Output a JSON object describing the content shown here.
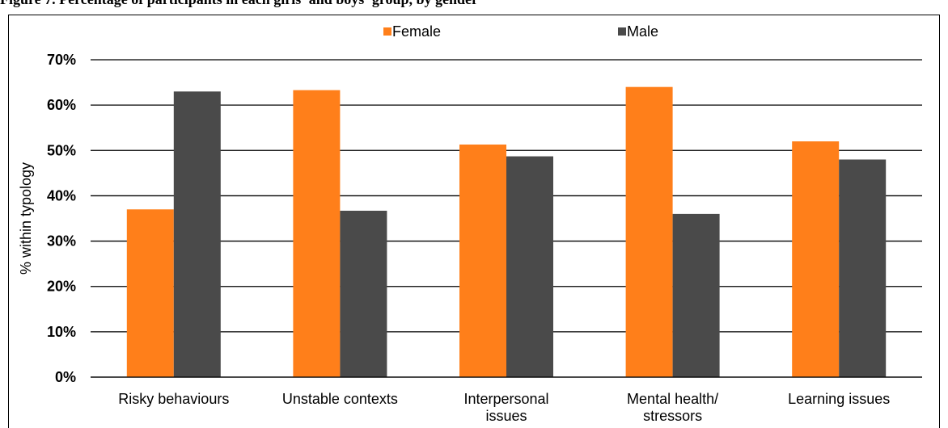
{
  "caption": "Figure 7. Percentage of participants in each girls' and boys' group, by gender",
  "chart_data": {
    "type": "bar",
    "ylabel": "% within typology",
    "ylim": [
      0,
      70
    ],
    "yticks": [
      "0%",
      "10%",
      "20%",
      "30%",
      "40%",
      "50%",
      "60%",
      "70%"
    ],
    "ytick_values": [
      0,
      10,
      20,
      30,
      40,
      50,
      60,
      70
    ],
    "grid": true,
    "legend_position": "top",
    "categories": [
      [
        "Risky behaviours"
      ],
      [
        "Unstable contexts"
      ],
      [
        "Interpersonal",
        "issues"
      ],
      [
        "Mental health/",
        "stressors"
      ],
      [
        "Learning issues"
      ]
    ],
    "series": [
      {
        "name": "Female",
        "color": "#FF7F1A",
        "values": [
          37,
          63.3,
          51.3,
          64,
          52
        ]
      },
      {
        "name": "Male",
        "color": "#4A4A4A",
        "values": [
          63,
          36.7,
          48.7,
          36,
          48
        ]
      }
    ]
  }
}
